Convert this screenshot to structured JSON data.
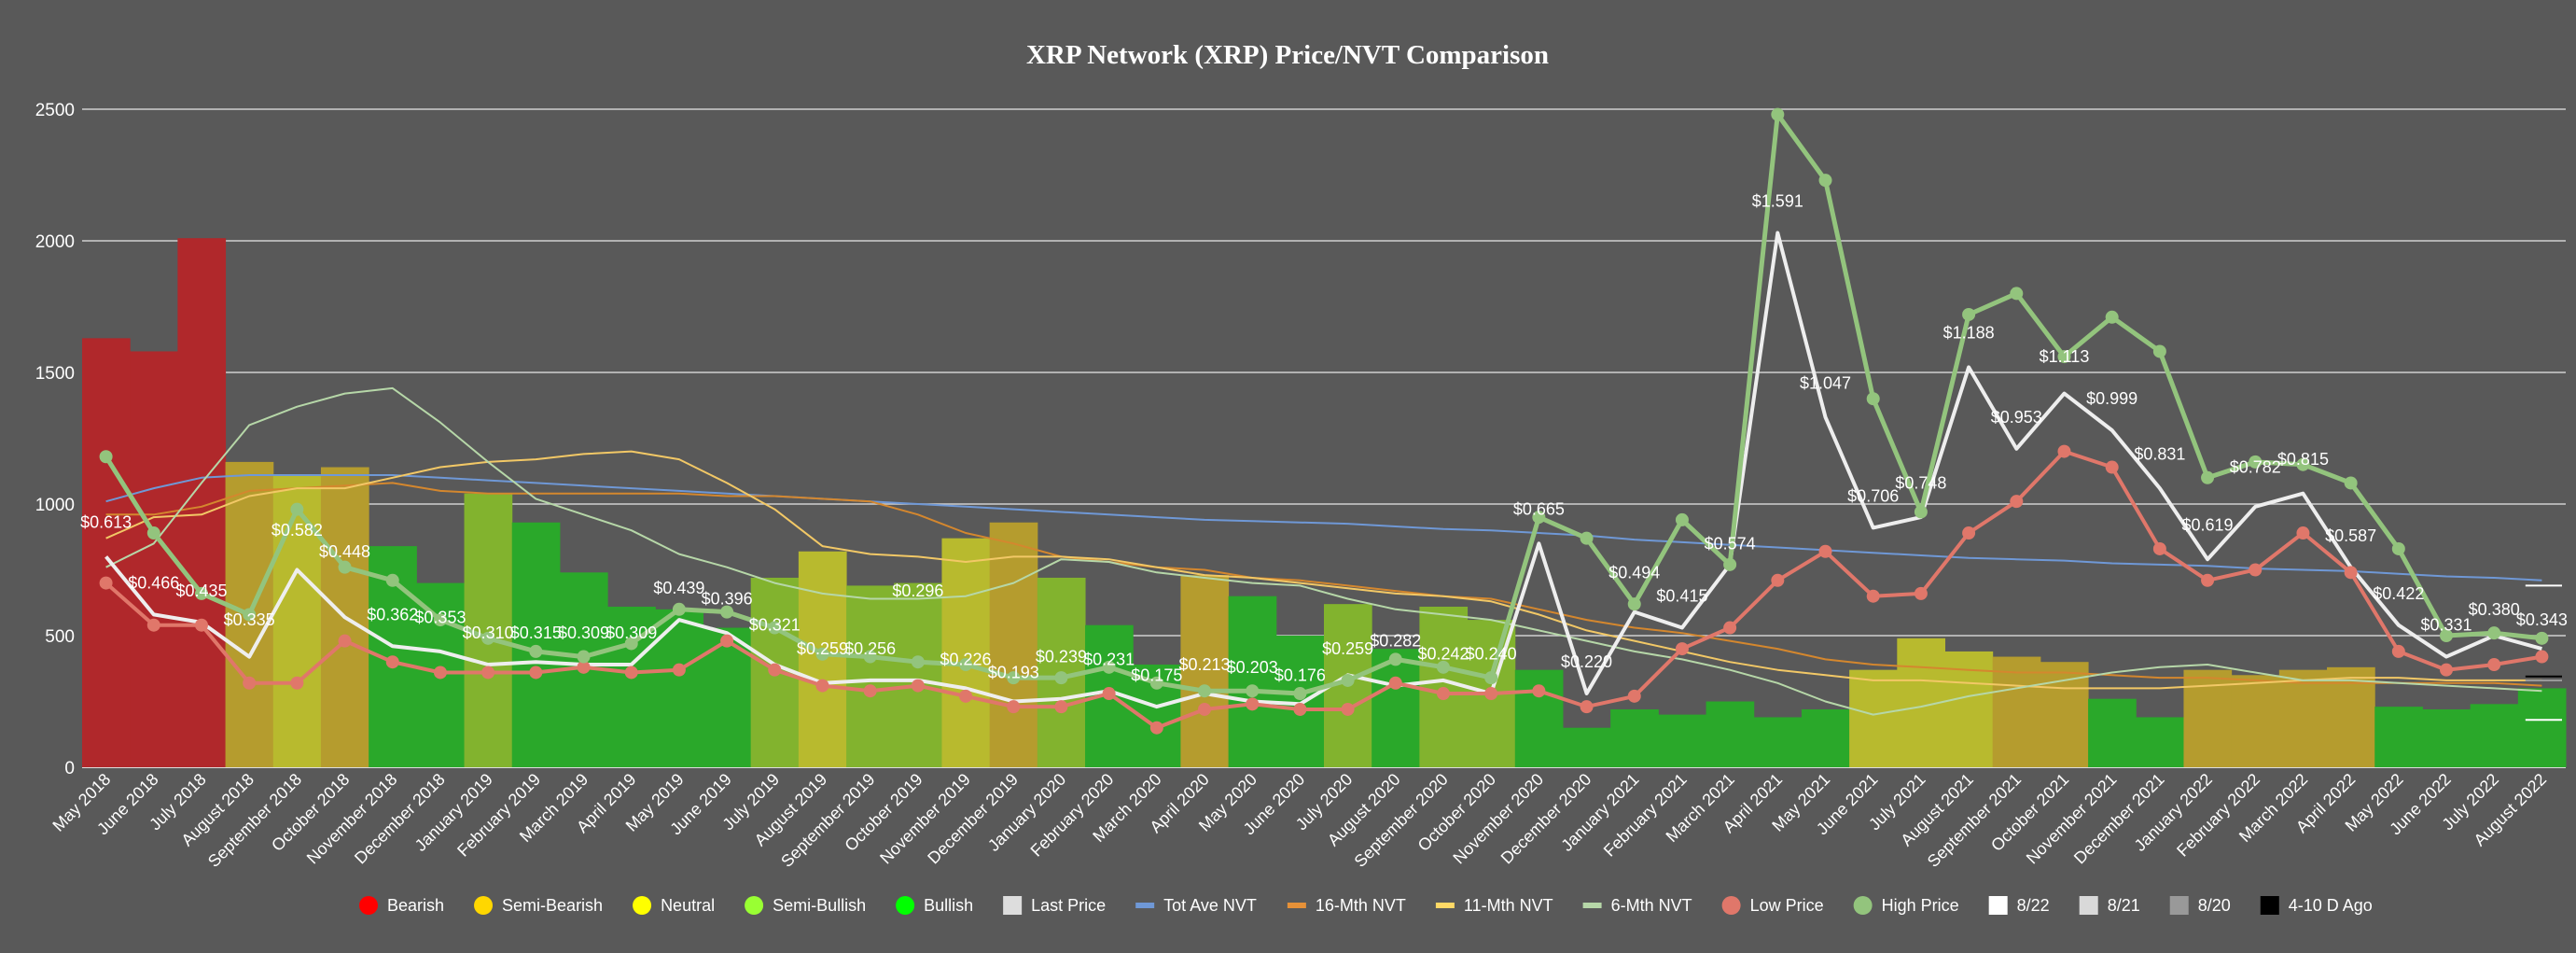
{
  "chart_data": {
    "type": "bar",
    "title": "XRP Network (XRP) Price/NVT Comparison",
    "ylim": [
      0,
      2500
    ],
    "yticks": [
      0,
      500,
      1000,
      1500,
      2000,
      2500
    ],
    "grid": true,
    "legend_position": "bottom",
    "categories": [
      "May 2018",
      "June 2018",
      "July 2018",
      "August 2018",
      "September 2018",
      "October 2018",
      "November 2018",
      "December 2018",
      "January 2019",
      "February 2019",
      "March 2019",
      "April 2019",
      "May 2019",
      "June 2019",
      "July 2019",
      "August 2019",
      "September 2019",
      "October 2019",
      "November 2019",
      "December 2019",
      "January 2020",
      "February 2020",
      "March 2020",
      "April 2020",
      "May 2020",
      "June 2020",
      "July 2020",
      "August 2020",
      "September 2020",
      "October 2020",
      "November 2020",
      "December 2020",
      "January 2021",
      "February 2021",
      "March 2021",
      "April 2021",
      "May 2021",
      "June 2021",
      "July 2021",
      "August 2021",
      "September 2021",
      "October 2021",
      "November 2021",
      "December 2021",
      "January 2022",
      "February 2022",
      "March 2022",
      "April 2022",
      "May 2022",
      "June 2022",
      "July 2022",
      "August 2022"
    ],
    "sentiment_colors": {
      "Bearish": "#b0282b",
      "Semi-Bearish": "#b59c2e",
      "Neutral": "#b8ba2e",
      "Semi-Bullish": "#82b32e",
      "Bullish": "#2aa82a"
    },
    "bars": {
      "name": "NVT",
      "values": [
        1630,
        1580,
        2010,
        1160,
        1110,
        1140,
        840,
        700,
        1040,
        930,
        740,
        610,
        600,
        530,
        720,
        820,
        690,
        700,
        870,
        930,
        720,
        540,
        390,
        730,
        650,
        500,
        620,
        450,
        610,
        560,
        370,
        150,
        220,
        200,
        250,
        190,
        220,
        370,
        490,
        440,
        420,
        400,
        260,
        190,
        370,
        350,
        370,
        380,
        230,
        220,
        240,
        300
      ],
      "sentiment": [
        "Bearish",
        "Bearish",
        "Bearish",
        "Semi-Bearish",
        "Neutral",
        "Semi-Bearish",
        "Bullish",
        "Bullish",
        "Semi-Bullish",
        "Bullish",
        "Bullish",
        "Bullish",
        "Bullish",
        "Bullish",
        "Semi-Bullish",
        "Neutral",
        "Semi-Bullish",
        "Semi-Bullish",
        "Neutral",
        "Semi-Bearish",
        "Semi-Bullish",
        "Bullish",
        "Bullish",
        "Semi-Bearish",
        "Bullish",
        "Bullish",
        "Semi-Bullish",
        "Bullish",
        "Semi-Bullish",
        "Semi-Bullish",
        "Bullish",
        "Bullish",
        "Bullish",
        "Bullish",
        "Bullish",
        "Bullish",
        "Bullish",
        "Neutral",
        "Neutral",
        "Neutral",
        "Semi-Bearish",
        "Semi-Bearish",
        "Bullish",
        "Bullish",
        "Semi-Bearish",
        "Semi-Bearish",
        "Semi-Bearish",
        "Semi-Bearish",
        "Bullish",
        "Bullish",
        "Bullish",
        "Bullish"
      ]
    },
    "series": [
      {
        "name": "Tot Ave NVT",
        "color": "#6f98d6",
        "width": 2,
        "values": [
          1010,
          1060,
          1100,
          1110,
          1110,
          1110,
          1110,
          1100,
          1090,
          1080,
          1070,
          1060,
          1050,
          1040,
          1030,
          1020,
          1010,
          1000,
          990,
          980,
          970,
          960,
          950,
          940,
          935,
          930,
          925,
          915,
          905,
          900,
          890,
          880,
          865,
          855,
          845,
          835,
          825,
          815,
          805,
          795,
          790,
          785,
          775,
          770,
          765,
          755,
          750,
          745,
          735,
          725,
          720,
          710
        ],
        "markers": false
      },
      {
        "name": "16-Mth NVT",
        "color": "#d4872e",
        "width": 2,
        "values": [
          960,
          960,
          990,
          1050,
          1060,
          1070,
          1080,
          1050,
          1040,
          1040,
          1040,
          1040,
          1040,
          1030,
          1030,
          1020,
          1010,
          960,
          890,
          850,
          800,
          780,
          760,
          750,
          720,
          710,
          690,
          670,
          650,
          640,
          600,
          560,
          530,
          510,
          480,
          450,
          410,
          390,
          380,
          370,
          360,
          360,
          350,
          340,
          340,
          330,
          320,
          320,
          320,
          320,
          320,
          310
        ],
        "markers": false
      },
      {
        "name": "11-Mth NVT",
        "color": "#f2c866",
        "width": 2,
        "values": [
          870,
          950,
          960,
          1030,
          1060,
          1060,
          1100,
          1140,
          1160,
          1170,
          1190,
          1200,
          1170,
          1080,
          980,
          840,
          810,
          800,
          780,
          800,
          800,
          790,
          760,
          730,
          720,
          700,
          680,
          660,
          650,
          630,
          580,
          520,
          480,
          440,
          400,
          370,
          350,
          330,
          330,
          320,
          310,
          300,
          300,
          300,
          310,
          320,
          330,
          340,
          340,
          330,
          330,
          330
        ],
        "markers": false
      },
      {
        "name": "6-Mth NVT",
        "color": "#b6d7a8",
        "width": 2,
        "values": [
          760,
          850,
          1080,
          1300,
          1370,
          1420,
          1440,
          1310,
          1160,
          1020,
          960,
          900,
          810,
          760,
          700,
          660,
          640,
          640,
          650,
          700,
          790,
          780,
          740,
          720,
          700,
          690,
          640,
          600,
          580,
          560,
          520,
          480,
          440,
          410,
          370,
          320,
          250,
          200,
          230,
          270,
          300,
          330,
          360,
          380,
          390,
          360,
          330,
          330,
          320,
          310,
          300,
          290
        ],
        "markers": false
      },
      {
        "name": "Last Price",
        "color": "#eeeeee",
        "width": 4,
        "values": [
          800,
          580,
          550,
          420,
          750,
          570,
          460,
          440,
          390,
          400,
          390,
          390,
          560,
          510,
          390,
          320,
          330,
          330,
          300,
          250,
          260,
          290,
          230,
          280,
          250,
          240,
          350,
          310,
          330,
          280,
          850,
          280,
          590,
          530,
          770,
          2030,
          1330,
          910,
          950,
          1520,
          1210,
          1420,
          1280,
          1060,
          790,
          990,
          1040,
          760,
          540,
          420,
          500,
          450
        ],
        "markers": false
      },
      {
        "name": "Low Price",
        "color": "#e0776a",
        "width": 4,
        "values": [
          700,
          540,
          540,
          320,
          320,
          480,
          400,
          360,
          360,
          360,
          380,
          360,
          370,
          480,
          370,
          310,
          290,
          310,
          270,
          230,
          230,
          280,
          150,
          220,
          240,
          220,
          220,
          320,
          280,
          280,
          290,
          230,
          270,
          450,
          530,
          710,
          820,
          650,
          660,
          890,
          1010,
          1200,
          1140,
          830,
          710,
          750,
          890,
          740,
          440,
          370,
          390,
          420
        ],
        "markers": true
      },
      {
        "name": "High Price",
        "color": "#93c47d",
        "width": 5,
        "values": [
          1180,
          890,
          660,
          580,
          980,
          760,
          710,
          560,
          490,
          440,
          420,
          470,
          600,
          590,
          530,
          430,
          420,
          400,
          390,
          340,
          340,
          380,
          320,
          290,
          290,
          280,
          330,
          410,
          380,
          340,
          950,
          870,
          620,
          940,
          770,
          2480,
          2230,
          1400,
          970,
          1720,
          1800,
          1560,
          1710,
          1580,
          1100,
          1160,
          1150,
          1080,
          830,
          500,
          510,
          490
        ],
        "markers": true
      }
    ],
    "price_labels": [
      {
        "i": 0,
        "text": "$0.613",
        "v": 930
      },
      {
        "i": 1,
        "text": "$0.466",
        "v": 700
      },
      {
        "i": 2,
        "text": "$0.435",
        "v": 670
      },
      {
        "i": 3,
        "text": "$0.335",
        "v": 560
      },
      {
        "i": 4,
        "text": "$0.582",
        "v": 900
      },
      {
        "i": 5,
        "text": "$0.448",
        "v": 820
      },
      {
        "i": 6,
        "text": "$0.362",
        "v": 580
      },
      {
        "i": 7,
        "text": "$0.353",
        "v": 570
      },
      {
        "i": 8,
        "text": "$0.310",
        "v": 510
      },
      {
        "i": 9,
        "text": "$0.315",
        "v": 510
      },
      {
        "i": 10,
        "text": "$0.309",
        "v": 510
      },
      {
        "i": 11,
        "text": "$0.309",
        "v": 510
      },
      {
        "i": 12,
        "text": "$0.439",
        "v": 680
      },
      {
        "i": 13,
        "text": "$0.396",
        "v": 640
      },
      {
        "i": 14,
        "text": "$0.321",
        "v": 540
      },
      {
        "i": 15,
        "text": "$0.259",
        "v": 450
      },
      {
        "i": 16,
        "text": "$0.256",
        "v": 450
      },
      {
        "i": 17,
        "text": "$0.296",
        "v": 670
      },
      {
        "i": 18,
        "text": "$0.226",
        "v": 410
      },
      {
        "i": 19,
        "text": "$0.193",
        "v": 360
      },
      {
        "i": 20,
        "text": "$0.239",
        "v": 420
      },
      {
        "i": 21,
        "text": "$0.231",
        "v": 410
      },
      {
        "i": 22,
        "text": "$0.175",
        "v": 350
      },
      {
        "i": 23,
        "text": "$0.213",
        "v": 390
      },
      {
        "i": 24,
        "text": "$0.203",
        "v": 380
      },
      {
        "i": 25,
        "text": "$0.176",
        "v": 350
      },
      {
        "i": 26,
        "text": "$0.259",
        "v": 450
      },
      {
        "i": 27,
        "text": "$0.282",
        "v": 480
      },
      {
        "i": 28,
        "text": "$0.242",
        "v": 430
      },
      {
        "i": 29,
        "text": "$0.240",
        "v": 430
      },
      {
        "i": 30,
        "text": "$0.665",
        "v": 980
      },
      {
        "i": 31,
        "text": "$0.220",
        "v": 400
      },
      {
        "i": 32,
        "text": "$0.494",
        "v": 740
      },
      {
        "i": 33,
        "text": "$0.415",
        "v": 650
      },
      {
        "i": 34,
        "text": "$0.574",
        "v": 850
      },
      {
        "i": 35,
        "text": "$1.591",
        "v": 2150
      },
      {
        "i": 36,
        "text": "$1.047",
        "v": 1460
      },
      {
        "i": 37,
        "text": "$0.706",
        "v": 1030
      },
      {
        "i": 38,
        "text": "$0.748",
        "v": 1080
      },
      {
        "i": 39,
        "text": "$1.188",
        "v": 1650
      },
      {
        "i": 40,
        "text": "$0.953",
        "v": 1330
      },
      {
        "i": 41,
        "text": "$1.113",
        "v": 1560
      },
      {
        "i": 42,
        "text": "$0.999",
        "v": 1400
      },
      {
        "i": 43,
        "text": "$0.831",
        "v": 1190
      },
      {
        "i": 44,
        "text": "$0.619",
        "v": 920
      },
      {
        "i": 45,
        "text": "$0.782",
        "v": 1140
      },
      {
        "i": 46,
        "text": "$0.815",
        "v": 1170
      },
      {
        "i": 47,
        "text": "$0.587",
        "v": 880
      },
      {
        "i": 48,
        "text": "$0.422",
        "v": 660
      },
      {
        "i": 49,
        "text": "$0.331",
        "v": 540
      },
      {
        "i": 50,
        "text": "$0.380",
        "v": 600
      },
      {
        "i": 51,
        "text": "$0.343",
        "v": 560
      }
    ],
    "legend": [
      {
        "label": "Bearish",
        "marker": "circle",
        "color": "#ff0000"
      },
      {
        "label": "Semi-Bearish",
        "marker": "circle",
        "color": "#ffd700"
      },
      {
        "label": "Neutral",
        "marker": "circle",
        "color": "#ffff00"
      },
      {
        "label": "Semi-Bullish",
        "marker": "circle",
        "color": "#99ff33"
      },
      {
        "label": "Bullish",
        "marker": "circle",
        "color": "#00ff00"
      },
      {
        "label": "Last Price",
        "marker": "square",
        "color": "#dddddd"
      },
      {
        "label": "Tot Ave NVT",
        "marker": "line",
        "color": "#6f98d6"
      },
      {
        "label": "16-Mth NVT",
        "marker": "line",
        "color": "#e69138"
      },
      {
        "label": "11-Mth NVT",
        "marker": "line",
        "color": "#ffd966"
      },
      {
        "label": "6-Mth NVT",
        "marker": "line",
        "color": "#b6d7a8"
      },
      {
        "label": "Low Price",
        "marker": "circle",
        "color": "#e0776a"
      },
      {
        "label": "High Price",
        "marker": "circle",
        "color": "#93c47d"
      },
      {
        "label": "8/22",
        "marker": "square",
        "color": "#ffffff"
      },
      {
        "label": "8/21",
        "marker": "square",
        "color": "#d9d9d9"
      },
      {
        "label": "8/20",
        "marker": "square",
        "color": "#999999"
      },
      {
        "label": "4-10 D Ago",
        "marker": "square",
        "color": "#000000"
      }
    ]
  }
}
